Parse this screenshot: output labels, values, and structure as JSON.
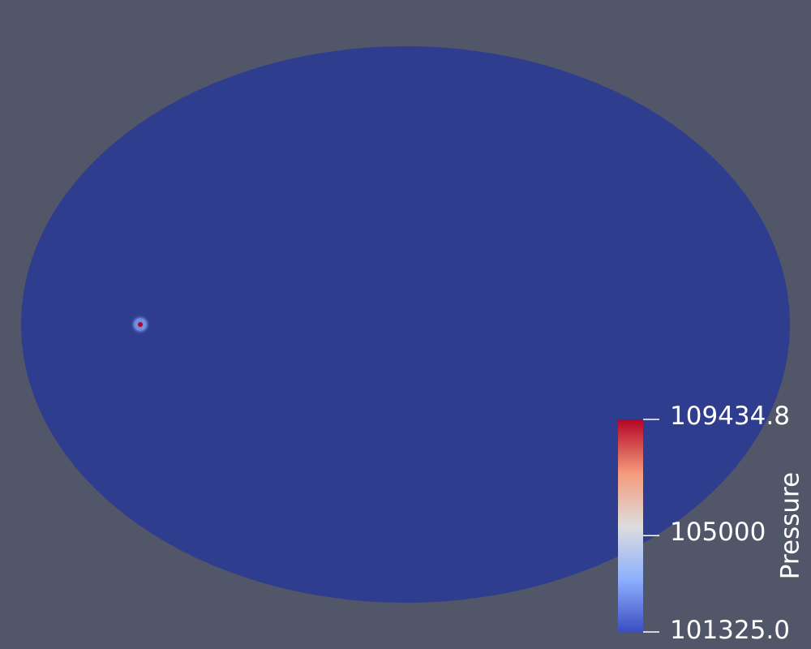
{
  "scene": {
    "background_color": "#525669",
    "domain_color": "#2f3d8f",
    "hotspot_core_color": "#b40426",
    "hotspot_halo_color": "#6b8de8"
  },
  "colorbar": {
    "title": "Pressure",
    "range": [
      101325.0,
      109434.8
    ],
    "colormap": "cool-to-warm",
    "stops": [
      "#3b4cc0",
      "#8db0fe",
      "#dddddd",
      "#f49a7b",
      "#b40426"
    ],
    "tick_labels": {
      "max": "109434.8",
      "mid": "105000",
      "min": "101325.0"
    },
    "mid_value": 105000
  }
}
